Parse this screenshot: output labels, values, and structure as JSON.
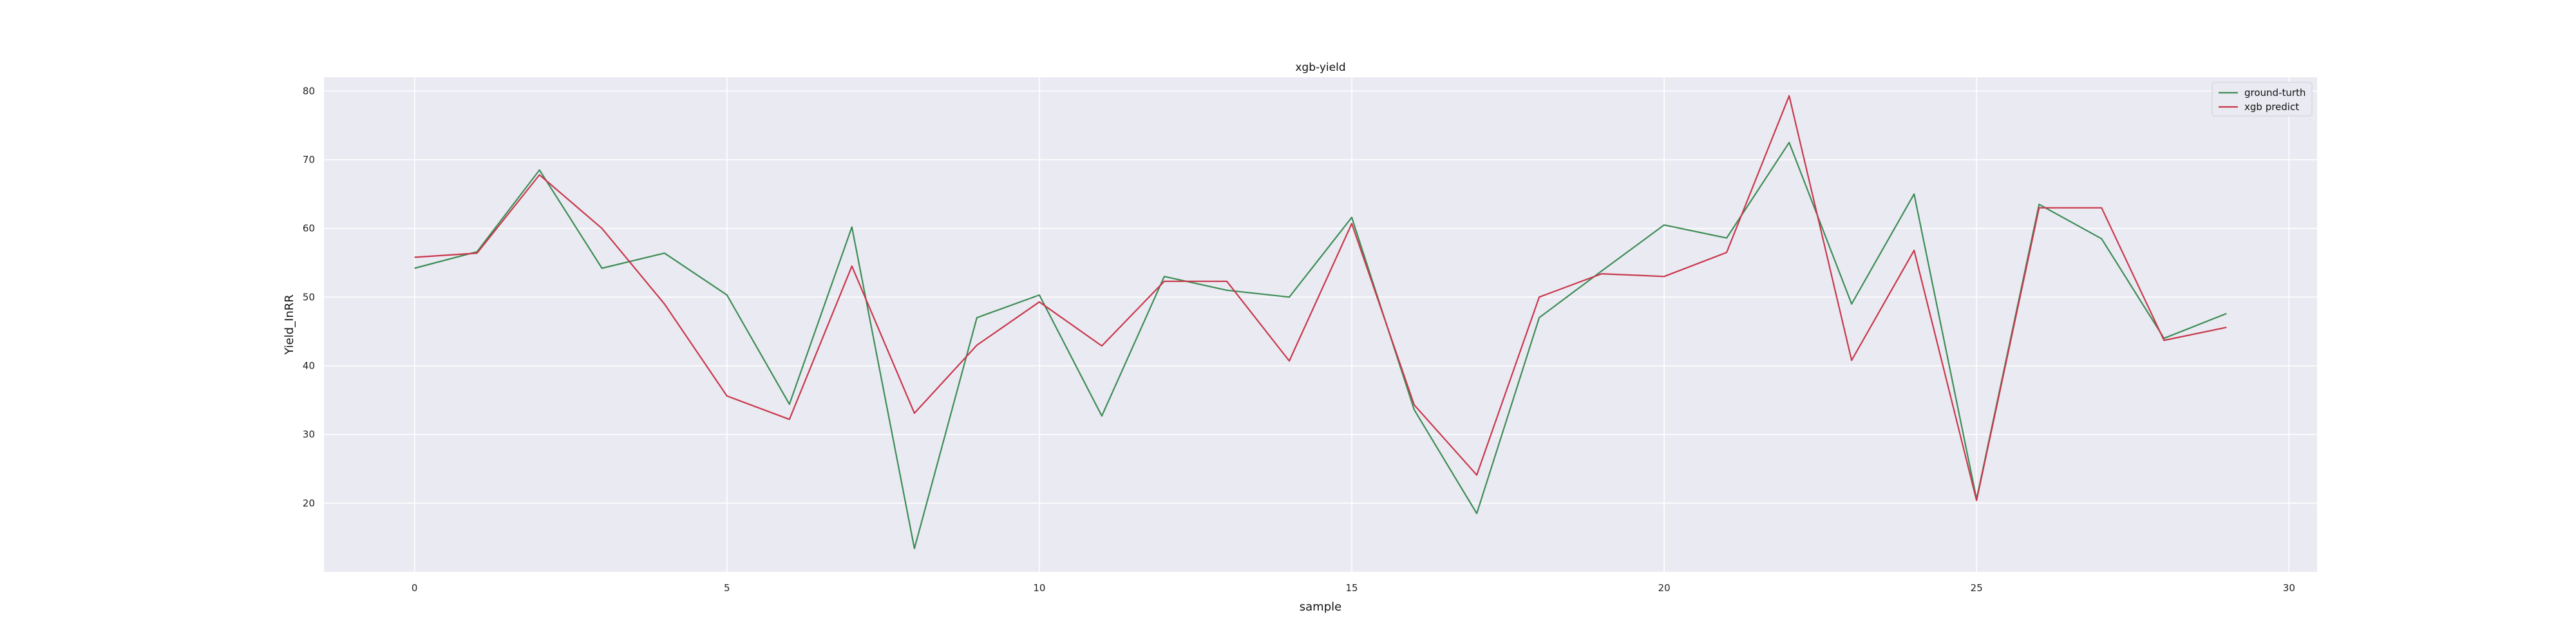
{
  "chart_data": {
    "type": "line",
    "title": "xgb-yield",
    "xlabel": "sample",
    "ylabel": "Yield_InRR",
    "xlim": [
      -1.45,
      30.45
    ],
    "ylim": [
      10,
      82
    ],
    "xticks": [
      0,
      5,
      10,
      15,
      20,
      25,
      30
    ],
    "yticks": [
      20,
      30,
      40,
      50,
      60,
      70,
      80
    ],
    "grid": true,
    "legend": "top-right",
    "x": [
      0,
      1,
      2,
      3,
      4,
      5,
      6,
      7,
      8,
      9,
      10,
      11,
      12,
      13,
      14,
      15,
      16,
      17,
      18,
      19,
      20,
      21,
      22,
      23,
      24,
      25,
      26,
      27,
      28,
      29
    ],
    "series": [
      {
        "name": "ground-turth",
        "color": "#3c8c55",
        "values": [
          54.2,
          56.6,
          68.5,
          54.2,
          56.4,
          50.3,
          34.4,
          60.2,
          13.4,
          47.0,
          50.3,
          32.7,
          53.0,
          51.0,
          50.0,
          61.6,
          33.6,
          18.5,
          47.0,
          53.8,
          60.5,
          58.6,
          72.5,
          49.0,
          65.0,
          20.6,
          63.5,
          58.5,
          44.0,
          47.6
        ]
      },
      {
        "name": "xgb predict",
        "color": "#c8374b",
        "values": [
          55.8,
          56.4,
          67.8,
          60.0,
          49.0,
          35.6,
          32.2,
          54.5,
          33.1,
          43.0,
          49.3,
          42.9,
          52.3,
          52.3,
          40.7,
          60.7,
          34.3,
          24.1,
          50.0,
          53.4,
          53.0,
          56.5,
          79.3,
          40.8,
          56.8,
          20.4,
          63.0,
          63.0,
          43.7,
          45.6
        ]
      }
    ]
  },
  "colors": {
    "page_background": "#ffffff",
    "plot_background": "#eaeaf2",
    "grid": "#ffffff"
  }
}
